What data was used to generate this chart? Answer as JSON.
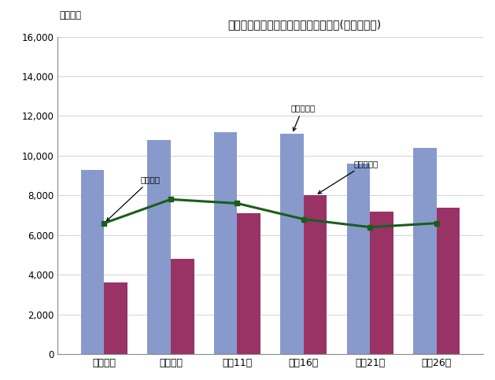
{
  "title": "図表４－５　貯蓄・負債現在高の推移(勤労者世帯)",
  "ylabel": "（千円）",
  "categories": [
    "平成元年",
    "平成６年",
    "平成11年",
    "平成16年",
    "平成21年",
    "平成26年"
  ],
  "savings": [
    9300,
    10800,
    11200,
    11100,
    9600,
    10400
  ],
  "debt": [
    3600,
    4800,
    7100,
    8000,
    7200,
    7400
  ],
  "income": [
    6600,
    7800,
    7600,
    6800,
    6400,
    6600
  ],
  "savings_color": "#8899cc",
  "debt_color": "#993366",
  "income_color": "#1a5e1a",
  "ylim": [
    0,
    16000
  ],
  "yticks": [
    0,
    2000,
    4000,
    6000,
    8000,
    10000,
    12000,
    14000,
    16000
  ],
  "bg_color": "#ffffff",
  "annotation_income": "年間収入",
  "annotation_savings": "豬蓄現在高",
  "annotation_debt": "負債現在高"
}
